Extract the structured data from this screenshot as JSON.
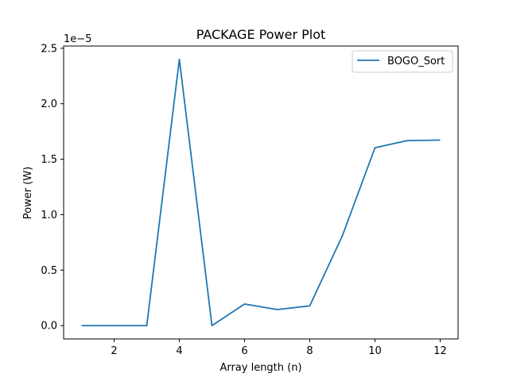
{
  "chart_data": {
    "type": "line",
    "title": "PACKAGE Power Plot",
    "xlabel": "Array length (n)",
    "ylabel": "Power (W)",
    "y_offset_label": "1e−5",
    "xlim": [
      0.45,
      12.55
    ],
    "ylim": [
      -1.2e-06,
      2.52e-05
    ],
    "x_ticks": [
      2,
      4,
      6,
      8,
      10,
      12
    ],
    "x_tick_labels": [
      "2",
      "4",
      "6",
      "8",
      "10",
      "12"
    ],
    "y_ticks": [
      0,
      5e-06,
      1e-05,
      1.5e-05,
      2e-05,
      2.5e-05
    ],
    "y_tick_labels": [
      "0.0",
      "0.5",
      "1.0",
      "1.5",
      "2.0",
      "2.5"
    ],
    "grid": false,
    "legend_position": "top-right",
    "series": [
      {
        "name": "BOGO_Sort",
        "color": "#1f77b4",
        "x": [
          1,
          2,
          3,
          4,
          5,
          6,
          7,
          8,
          9,
          10,
          11,
          12
        ],
        "y": [
          0,
          0,
          0,
          2.4e-05,
          0,
          1.95e-06,
          1.45e-06,
          1.78e-06,
          8.1e-06,
          1.603e-05,
          1.668e-05,
          1.672e-05
        ]
      }
    ]
  }
}
